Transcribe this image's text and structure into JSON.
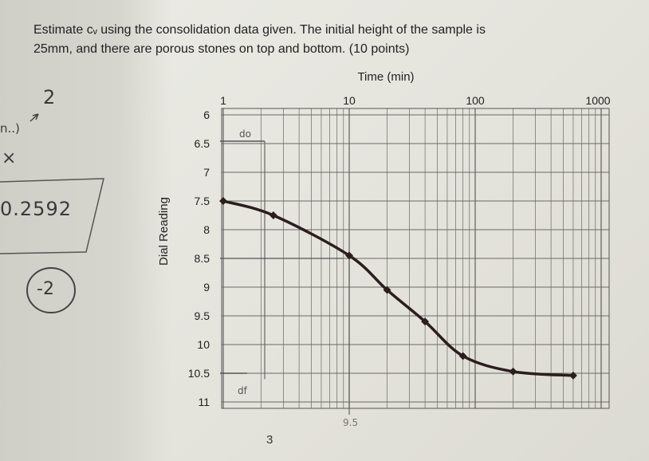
{
  "question": {
    "line1": "Estimate cᵥ using the consolidation data given. The initial height of the sample is",
    "line2": "25mm, and there are porous stones on top and bottom. (10 points)"
  },
  "chart_data": {
    "type": "line",
    "title": "",
    "xlabel": "Time (min)",
    "ylabel": "Dial Reading",
    "xscale": "log",
    "xlim": [
      1,
      1000
    ],
    "ylim": [
      6,
      11
    ],
    "y_inverted": true,
    "grid": true,
    "x_ticks": [
      1,
      10,
      100,
      1000
    ],
    "x_tick_labels": [
      "1",
      "10",
      "100",
      "1000"
    ],
    "y_ticks": [
      6,
      6.5,
      7,
      7.5,
      8,
      8.5,
      9,
      9.5,
      10,
      10.5,
      11
    ],
    "y_tick_labels": [
      "6",
      "6.5",
      "7",
      "7.5",
      "8",
      "8.5",
      "9",
      "9.5",
      "10",
      "10.5",
      "11"
    ],
    "series": [
      {
        "x": [
          1,
          2.5,
          10,
          20,
          40,
          80,
          200,
          600
        ],
        "y": [
          7.5,
          7.75,
          8.45,
          9.05,
          9.6,
          10.2,
          10.47,
          10.54
        ]
      }
    ],
    "annotations": {
      "d0_label": "do",
      "df_label": "df",
      "marker_3": "3",
      "marker_9_5": "9.5"
    },
    "colors": {
      "line": "#2a1e1e",
      "grid": "#6a6a66"
    }
  },
  "handwriting": {
    "mark_2": "2",
    "bracket": "n..)",
    "x_mark": "×",
    "number": "0.2592",
    "score": "-2"
  }
}
